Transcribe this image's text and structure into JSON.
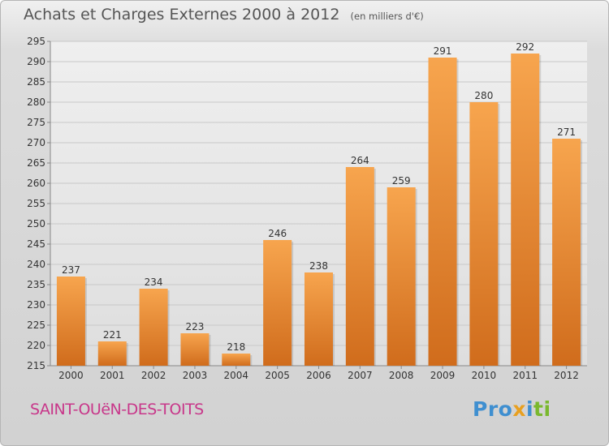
{
  "header": {
    "title": "Achats et Charges Externes 2000 à 2012",
    "unit_note": "(en milliers d'€)"
  },
  "footer": {
    "commune": "SAINT-OUëN-DES-TOITS",
    "logo_text": "Proxiti"
  },
  "colors": {
    "bar_light": "#f7a54e",
    "bar_dark": "#d06c1c",
    "grid": "#c8c8c8",
    "text": "#333333",
    "commune": "#c8378a"
  },
  "chart_data": {
    "type": "bar",
    "categories": [
      "2000",
      "2001",
      "2002",
      "2003",
      "2004",
      "2005",
      "2006",
      "2007",
      "2008",
      "2009",
      "2010",
      "2011",
      "2012"
    ],
    "values": [
      237,
      221,
      234,
      223,
      218,
      246,
      238,
      264,
      259,
      291,
      280,
      292,
      271
    ],
    "ylim": [
      215,
      295
    ],
    "yticks": [
      215,
      220,
      225,
      230,
      235,
      240,
      245,
      250,
      255,
      260,
      265,
      270,
      275,
      280,
      285,
      290,
      295
    ],
    "grid": true,
    "data_labels": true
  }
}
